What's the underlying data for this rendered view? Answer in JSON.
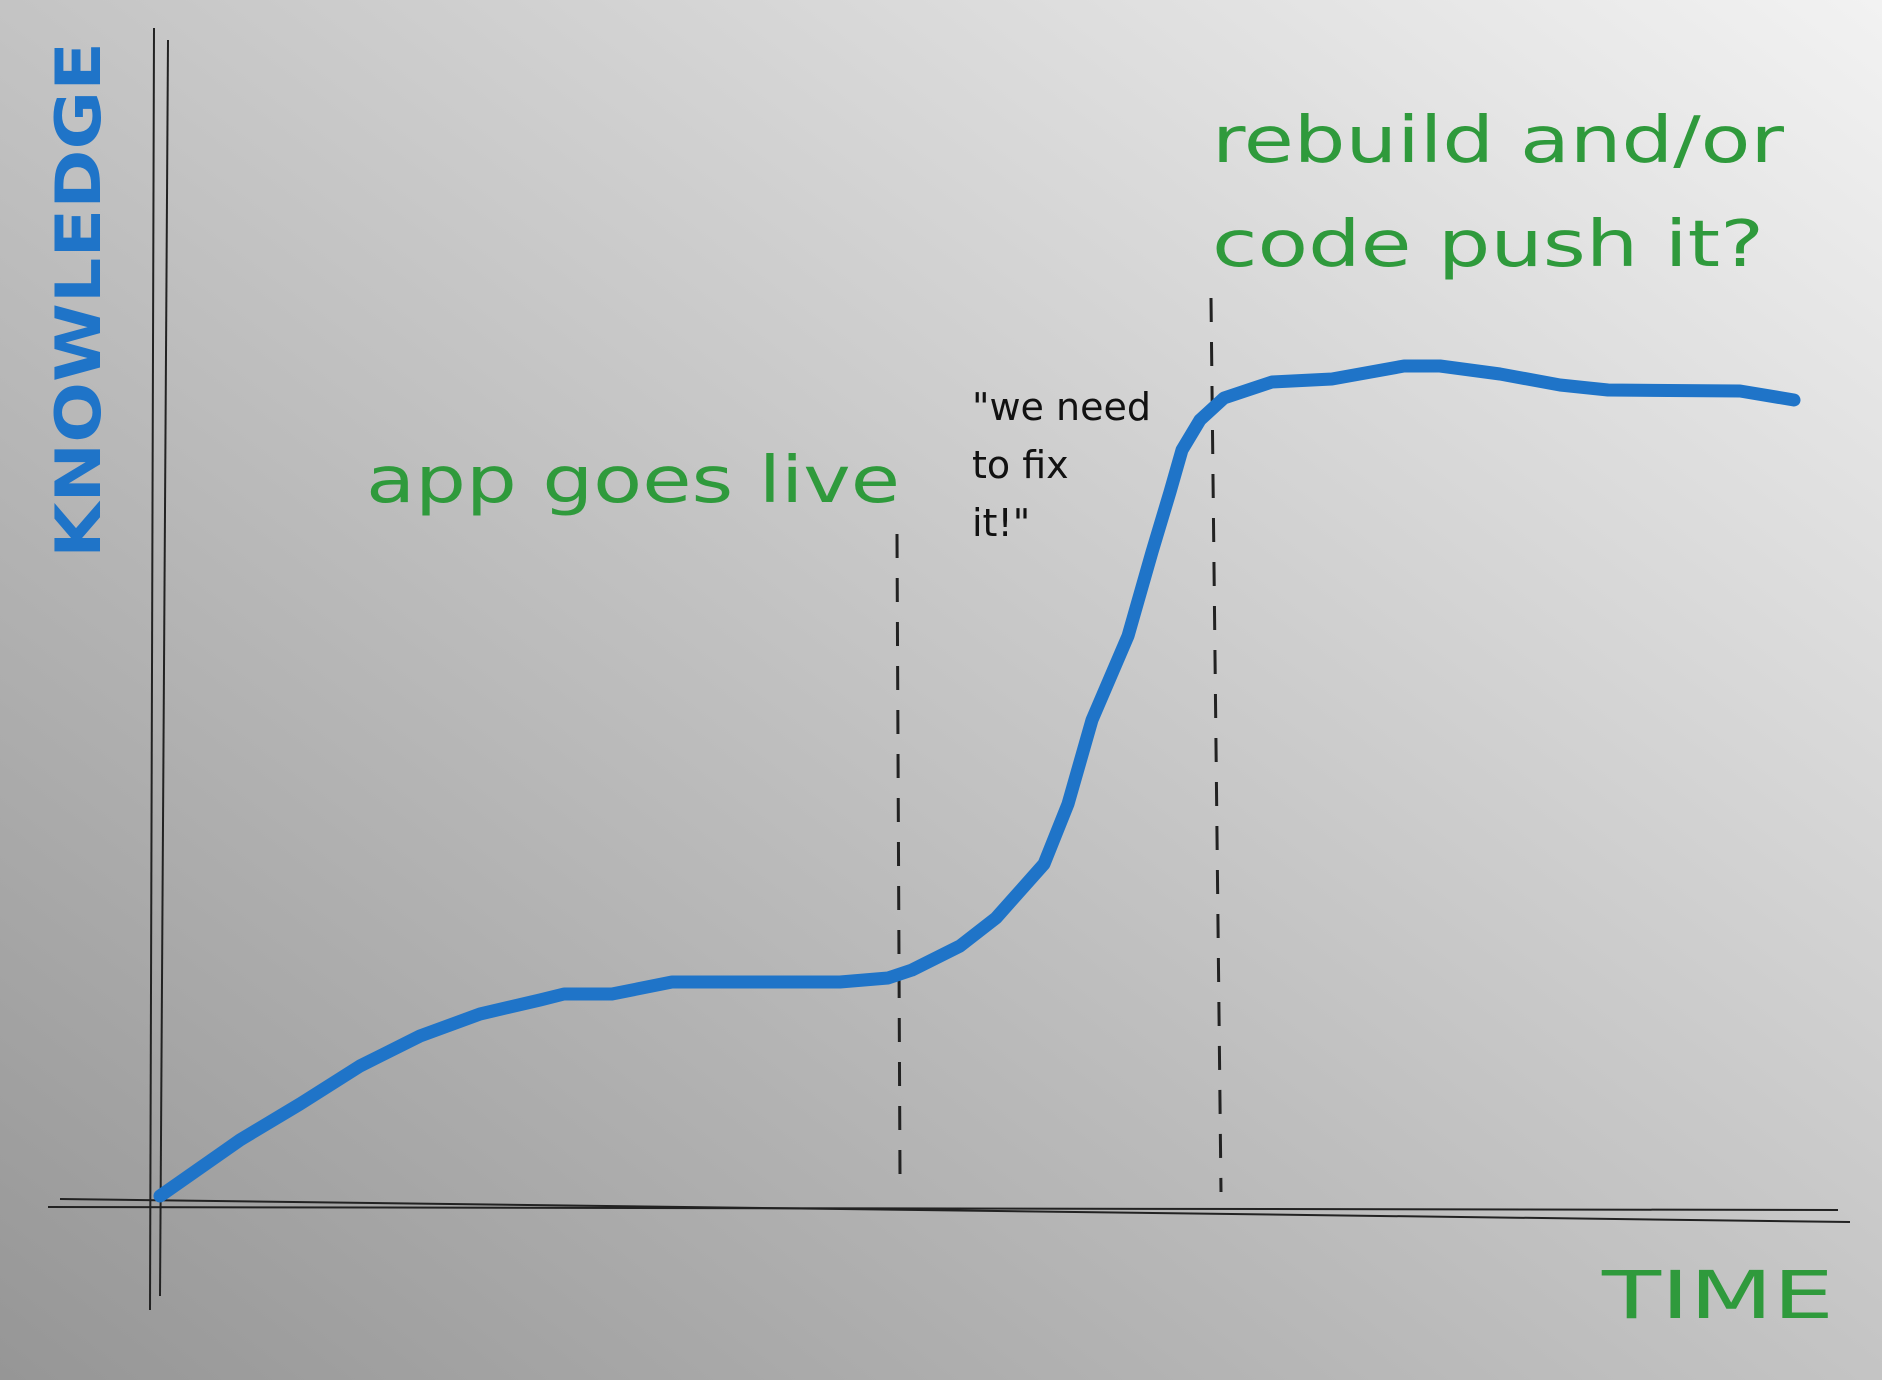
{
  "axes": {
    "y_label": "KNOWLEDGE",
    "x_label": "TIME"
  },
  "annotations": {
    "go_live": "app goes live",
    "quote": [
      "\"we need",
      "to fix",
      "it!\""
    ],
    "rebuild": [
      "rebuild and/or",
      "code push it?"
    ]
  }
}
